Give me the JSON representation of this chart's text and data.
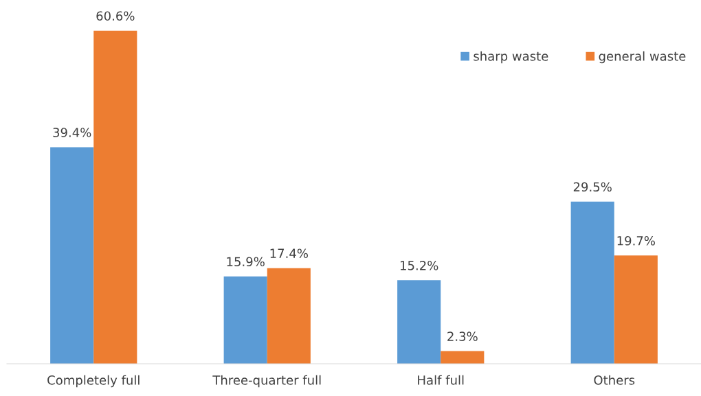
{
  "chart_data": {
    "type": "bar",
    "categories": [
      "Completely full",
      "Three-quarter full",
      "Half full",
      "Others"
    ],
    "series": [
      {
        "name": "sharp waste",
        "color": "#5b9bd5",
        "values": [
          39.4,
          15.9,
          15.2,
          29.5
        ],
        "value_labels": [
          "39.4%",
          "15.9%",
          "15.2%",
          "29.5%"
        ]
      },
      {
        "name": "general waste",
        "color": "#ed7d31",
        "values": [
          60.6,
          17.4,
          2.3,
          19.7
        ],
        "value_labels": [
          "60.6%",
          "17.4%",
          "2.3%",
          "19.7%"
        ]
      }
    ],
    "grid": false,
    "legend": "top right"
  }
}
